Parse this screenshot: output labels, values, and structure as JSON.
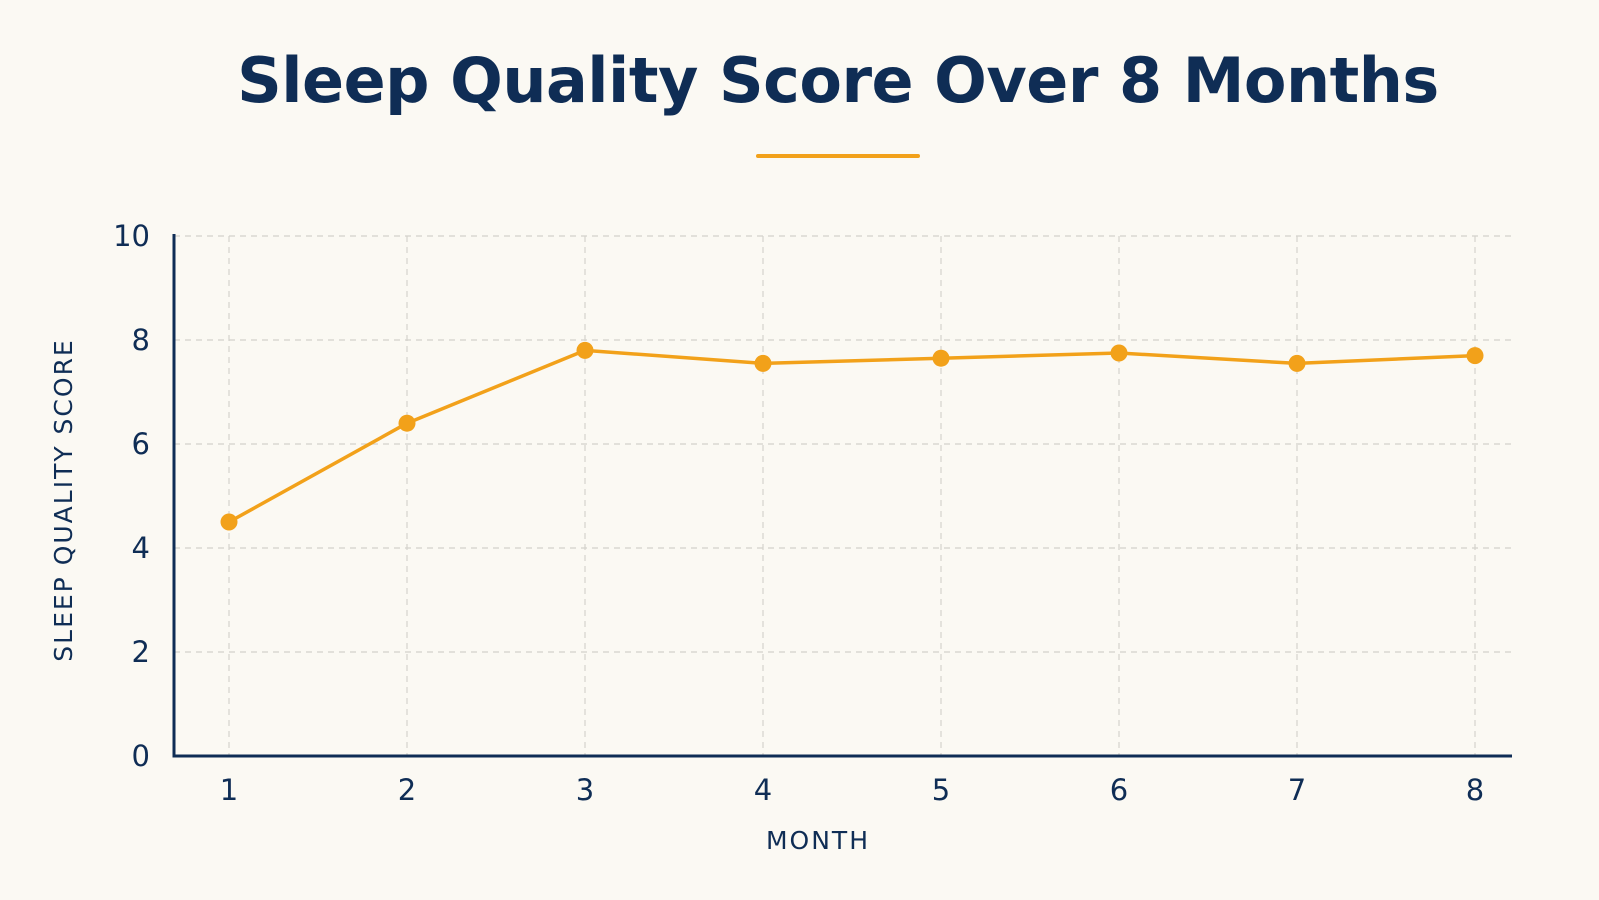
{
  "chart_data": {
    "type": "line",
    "title": "Sleep Quality Score Over 8 Months",
    "xlabel": "MONTH",
    "ylabel": "SLEEP QUALITY SCORE",
    "x": [
      1,
      2,
      3,
      4,
      5,
      6,
      7,
      8
    ],
    "series": [
      {
        "values": [
          4.5,
          6.4,
          7.8,
          7.55,
          7.65,
          7.75,
          7.55,
          7.7
        ]
      }
    ],
    "xlim": [
      1,
      8
    ],
    "ylim": [
      0,
      10
    ],
    "yticks": [
      0,
      2,
      4,
      6,
      8,
      10
    ],
    "grid": true,
    "legend": "none",
    "colors": {
      "line": "#f2a11a",
      "axis": "#0f2d55",
      "grid": "#d4d2cc",
      "background": "#fbf9f3"
    }
  }
}
